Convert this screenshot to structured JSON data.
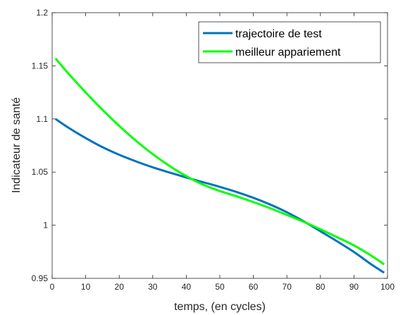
{
  "chart_data": {
    "type": "line",
    "xlabel": "temps, (en cycles)",
    "ylabel": "Indicateur de santé",
    "xlim": [
      0,
      100
    ],
    "ylim": [
      0.95,
      1.2
    ],
    "xticks": [
      "0",
      "10",
      "20",
      "30",
      "40",
      "50",
      "60",
      "70",
      "80",
      "90",
      "100"
    ],
    "yticks": [
      "0.95",
      "1",
      "1.05",
      "1.1",
      "1.15",
      "1.2"
    ],
    "grid": false,
    "legend_position": "top-right",
    "series": [
      {
        "name": "trajectoire de test",
        "color": "#0072BD",
        "x": [
          1,
          5,
          10,
          15,
          20,
          25,
          30,
          35,
          40,
          45,
          50,
          55,
          60,
          65,
          70,
          75,
          80,
          85,
          90,
          95,
          99
        ],
        "y": [
          1.1,
          1.0915,
          1.082,
          1.0735,
          1.0663,
          1.0601,
          1.0545,
          1.0496,
          1.0449,
          1.0405,
          1.0361,
          1.0313,
          1.0258,
          1.0195,
          1.0122,
          1.0037,
          0.9943,
          0.9848,
          0.9748,
          0.9635,
          0.9553
        ]
      },
      {
        "name": "meilleur appariement",
        "color": "#00FF00",
        "x": [
          1,
          5,
          10,
          15,
          20,
          25,
          30,
          35,
          40,
          45,
          50,
          55,
          60,
          65,
          70,
          75,
          80,
          85,
          90,
          95,
          99
        ],
        "y": [
          1.157,
          1.1422,
          1.125,
          1.1087,
          1.0935,
          1.0795,
          1.0669,
          1.0558,
          1.0462,
          1.0382,
          1.0322,
          1.0272,
          1.0218,
          1.016,
          1.0097,
          1.0032,
          0.9962,
          0.9887,
          0.981,
          0.9717,
          0.9632
        ]
      }
    ]
  }
}
